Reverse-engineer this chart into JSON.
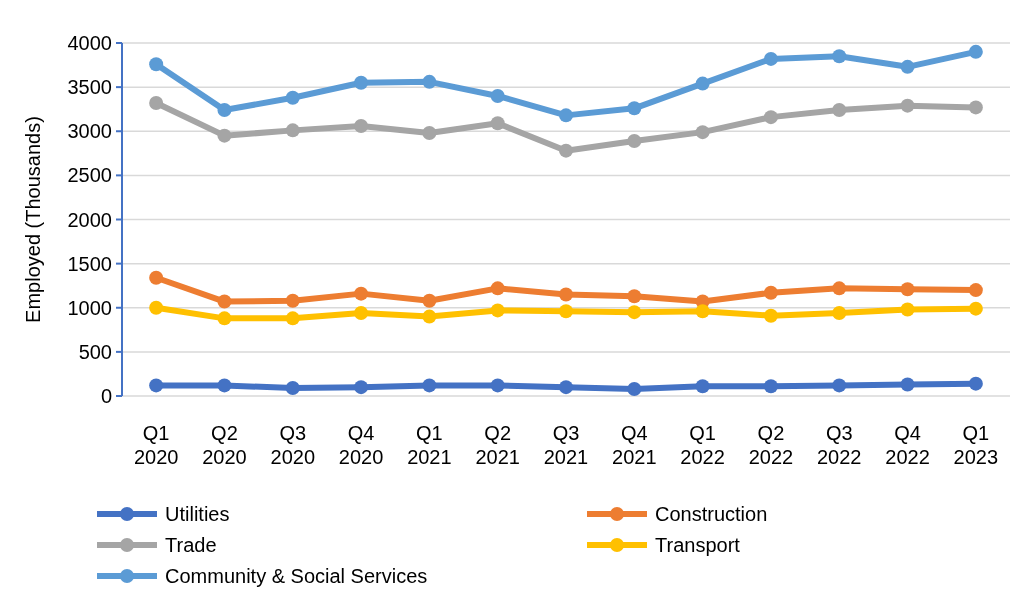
{
  "chart_data": {
    "type": "line",
    "ylabel": "Employed (Thousands)",
    "categories": [
      "Q1\n2020",
      "Q2\n2020",
      "Q3\n2020",
      "Q4\n2020",
      "Q1\n2021",
      "Q2\n2021",
      "Q3\n2021",
      "Q4\n2021",
      "Q1\n2022",
      "Q2\n2022",
      "Q3\n2022",
      "Q4\n2022",
      "Q1\n2023"
    ],
    "series": [
      {
        "name": "Utilities",
        "color": "#4472c4",
        "values": [
          120,
          120,
          90,
          100,
          120,
          120,
          100,
          80,
          110,
          110,
          120,
          130,
          140
        ]
      },
      {
        "name": "Construction",
        "color": "#ed7d31",
        "values": [
          1340,
          1070,
          1080,
          1160,
          1080,
          1220,
          1150,
          1130,
          1070,
          1170,
          1220,
          1210,
          1200
        ]
      },
      {
        "name": "Trade",
        "color": "#a5a5a5",
        "values": [
          3320,
          2950,
          3010,
          3060,
          2980,
          3090,
          2780,
          2890,
          2990,
          3160,
          3240,
          3290,
          3270
        ]
      },
      {
        "name": "Transport",
        "color": "#ffc000",
        "values": [
          1000,
          880,
          880,
          940,
          900,
          970,
          960,
          950,
          960,
          910,
          940,
          980,
          990
        ]
      },
      {
        "name": "Community & Social Services",
        "color": "#5b9bd5",
        "values": [
          3760,
          3240,
          3380,
          3550,
          3560,
          3400,
          3180,
          3260,
          3540,
          3820,
          3850,
          3730,
          3900
        ]
      }
    ],
    "ylim": [
      0,
      4000
    ],
    "yticks": [
      0,
      500,
      1000,
      1500,
      2000,
      2500,
      3000,
      3500,
      4000
    ],
    "grid": "y",
    "legend": "bottom",
    "marker": "circle",
    "line_style": "solid"
  }
}
